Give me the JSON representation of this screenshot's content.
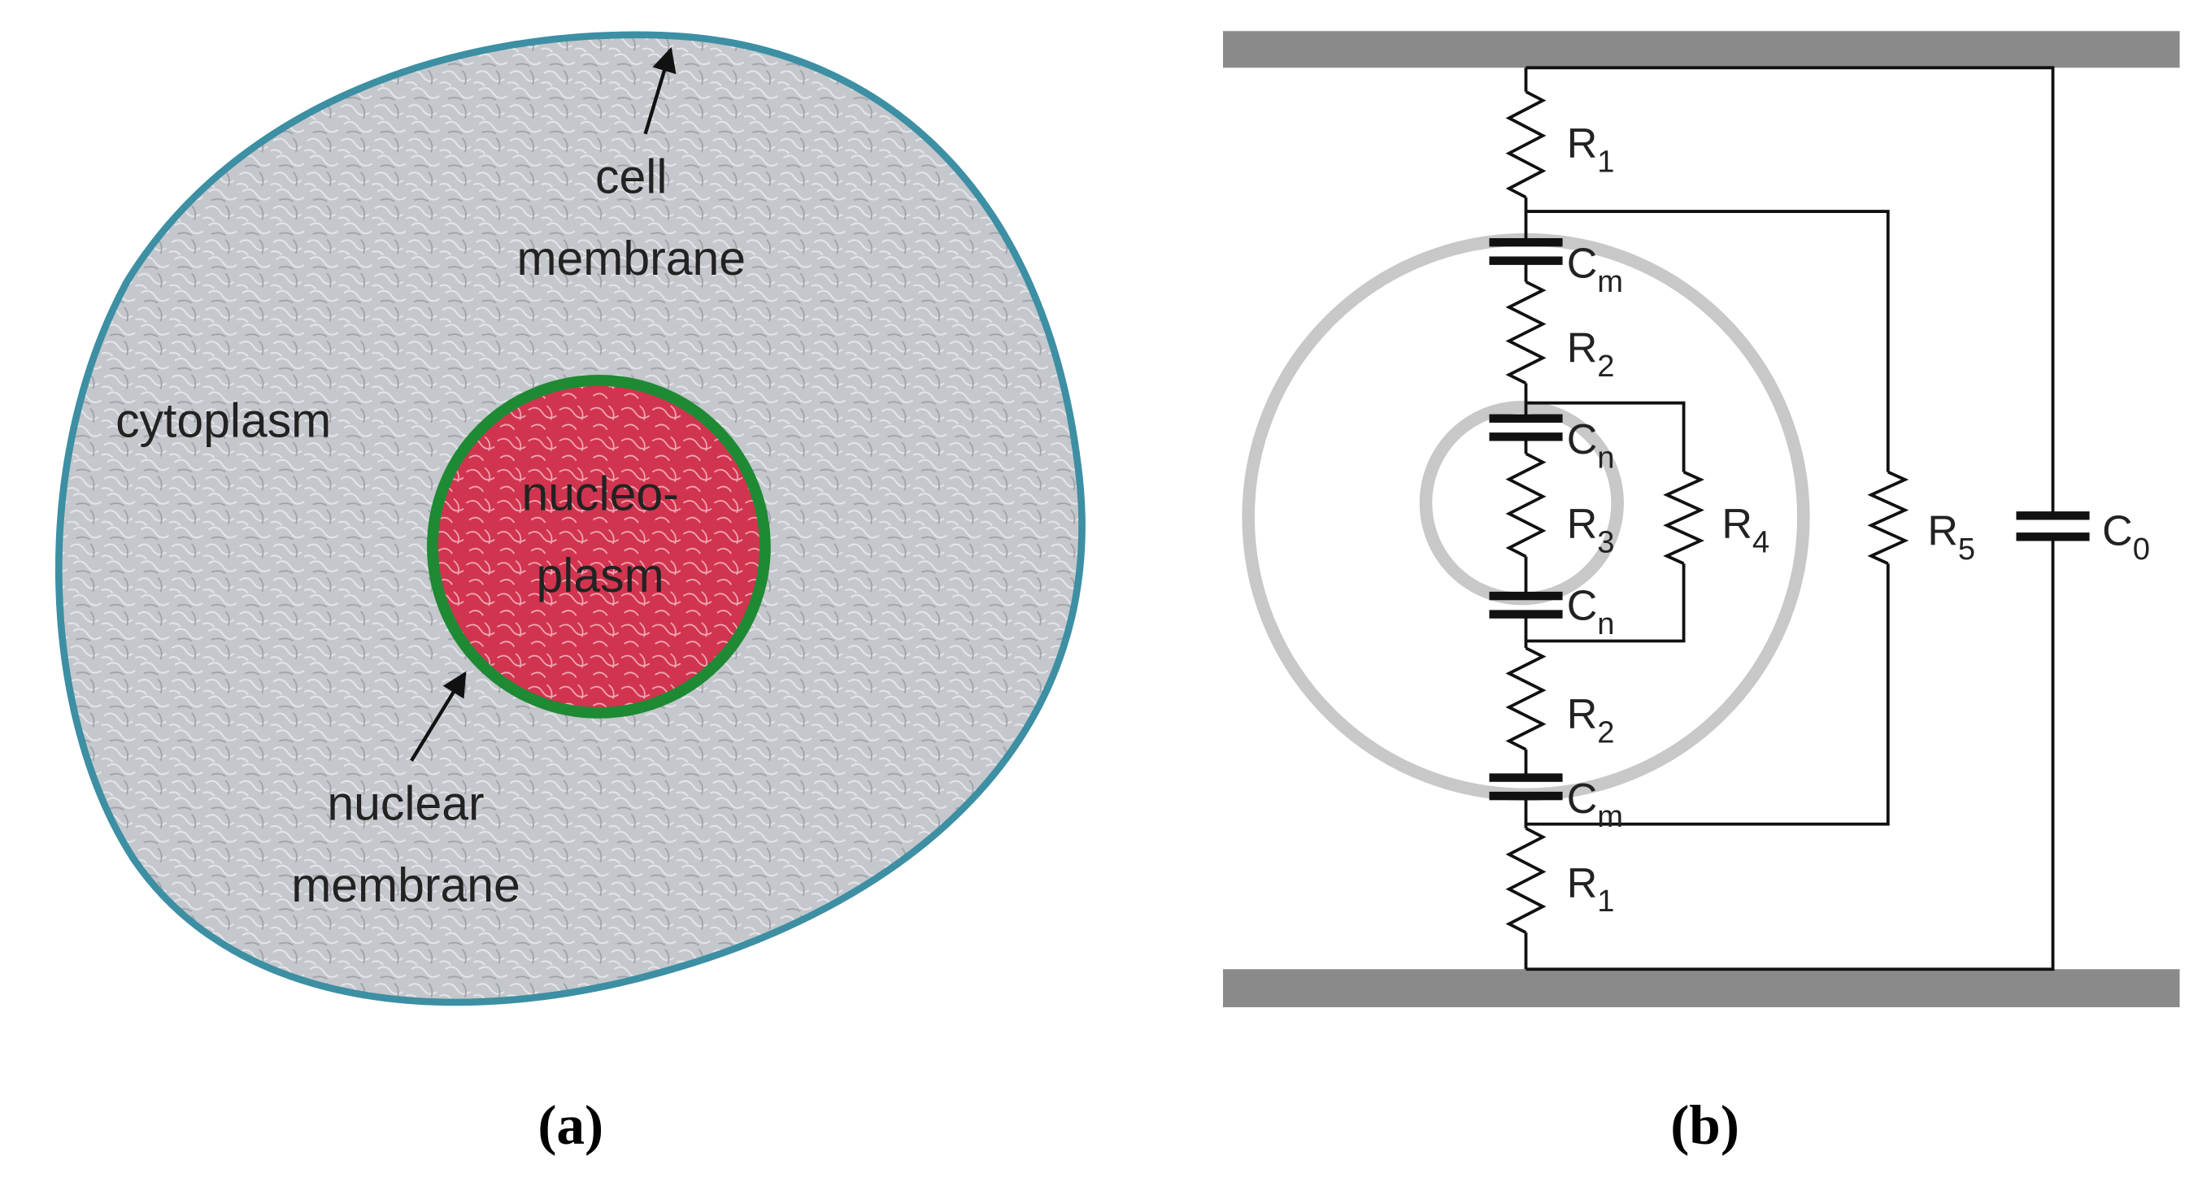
{
  "panel_a": {
    "labels": {
      "cell_membrane": [
        "cell",
        "membrane"
      ],
      "cytoplasm": "cytoplasm",
      "nucleoplasm": [
        "nucleo-",
        "plasm"
      ],
      "nuclear_membrane": [
        "nuclear",
        "membrane"
      ]
    },
    "caption": "(a)"
  },
  "panel_b": {
    "components": [
      {
        "letter": "R",
        "sub": "1"
      },
      {
        "letter": "C",
        "sub": "m"
      },
      {
        "letter": "R",
        "sub": "2"
      },
      {
        "letter": "C",
        "sub": "n"
      },
      {
        "letter": "R",
        "sub": "3"
      },
      {
        "letter": "R",
        "sub": "4"
      },
      {
        "letter": "C",
        "sub": "n"
      },
      {
        "letter": "R",
        "sub": "2"
      },
      {
        "letter": "C",
        "sub": "m"
      },
      {
        "letter": "R",
        "sub": "1"
      },
      {
        "letter": "R",
        "sub": "5"
      },
      {
        "letter": "C",
        "sub": "0"
      }
    ],
    "caption": "(b)"
  }
}
